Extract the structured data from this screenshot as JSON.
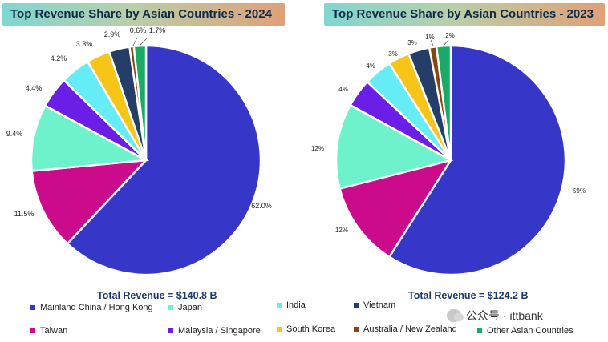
{
  "chart_data": [
    {
      "type": "pie",
      "title": "Top Revenue Share by Asian Countries - 2024",
      "total_label": "Total Revenue = $140.8 B",
      "categories": [
        "Mainland China / Hong Kong",
        "Taiwan",
        "Japan",
        "Malaysia / Singapore",
        "India",
        "South Korea",
        "Vietnam",
        "Australia / New Zealand",
        "Other Asian Countries"
      ],
      "values": [
        62.0,
        11.5,
        9.4,
        4.4,
        4.2,
        3.3,
        2.9,
        0.6,
        1.7
      ],
      "labels": [
        "62.0%",
        "11.5%",
        "9.4%",
        "4.4%",
        "4.2%",
        "3.3%",
        "2.9%",
        "0.6%",
        "1.7%"
      ]
    },
    {
      "type": "pie",
      "title": "Top Revenue Share by Asian Countries - 2023",
      "total_label": "Total Revenue = $124.2 B",
      "categories": [
        "Mainland China / Hong Kong",
        "Taiwan",
        "Japan",
        "Malaysia / Singapore",
        "India",
        "South Korea",
        "Vietnam",
        "Australia / New Zealand",
        "Other Asian Countries"
      ],
      "values": [
        59,
        12,
        12,
        4,
        4,
        3,
        3,
        1,
        2
      ],
      "labels": [
        "59%",
        "12%",
        "12%",
        "4%",
        "4%",
        "3%",
        "3%",
        "1%",
        "2%"
      ]
    }
  ],
  "legend": [
    {
      "label": "Mainland China / Hong Kong",
      "color": "#3636c8"
    },
    {
      "label": "Japan",
      "color": "#6ef2cb"
    },
    {
      "label": "India",
      "color": "#66ecf7"
    },
    {
      "label": "Vietnam",
      "color": "#253e68"
    },
    {
      "label": "Taiwan",
      "color": "#cc0b8c"
    },
    {
      "label": "Malaysia / Singapore",
      "color": "#6a1ee6"
    },
    {
      "label": "South Korea",
      "color": "#f7c418"
    },
    {
      "label": "Australia / New Zealand",
      "color": "#8a4410"
    },
    {
      "label": "Other Asian Countries",
      "color": "#1aaa66"
    }
  ],
  "watermark": {
    "text": "公众号 · ittbank"
  }
}
